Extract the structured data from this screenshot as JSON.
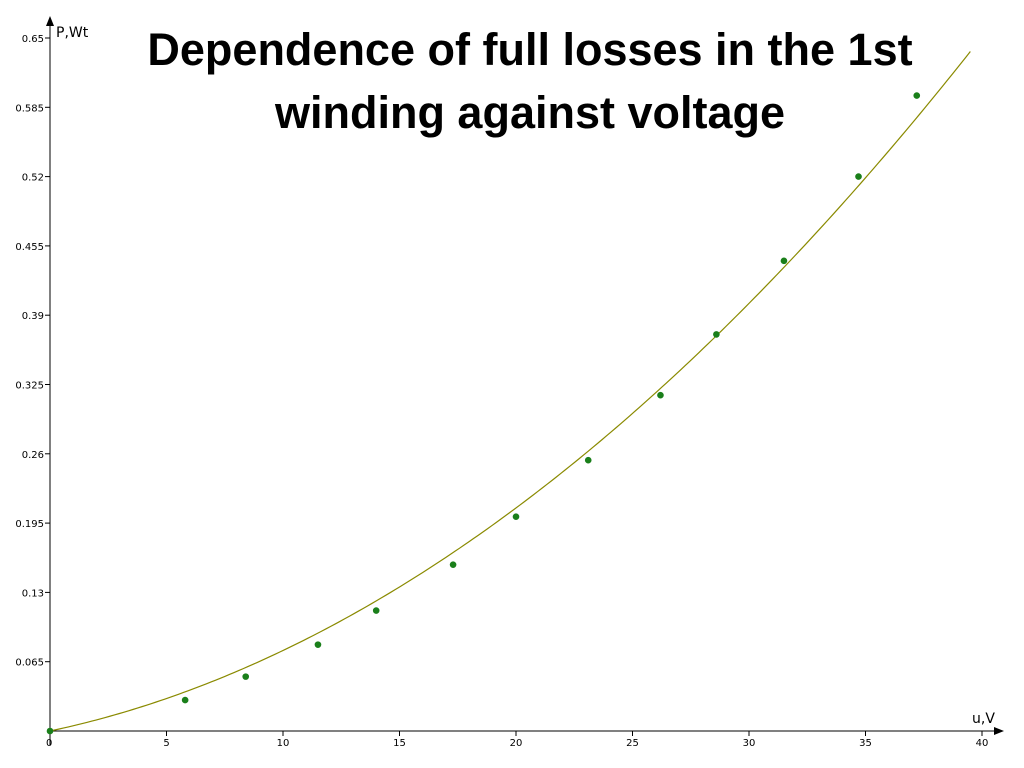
{
  "chart_data": {
    "type": "scatter",
    "title": "Dependence of full losses in the 1st winding against  voltage",
    "xlabel": "u,V",
    "ylabel": "P,Wt",
    "xlim": [
      0,
      40
    ],
    "ylim": [
      0,
      0.65
    ],
    "x_ticks": [
      "5",
      "10",
      "15",
      "20",
      "25",
      "30",
      "35",
      "40"
    ],
    "y_ticks": [
      "0.065",
      "0.13",
      "0.195",
      "0.26",
      "0.325",
      "0.39",
      "0.455",
      "0.52",
      "0.585",
      "0.65"
    ],
    "origin_label": "0",
    "grid": false,
    "legend": "none",
    "series": [
      {
        "type": "scatter",
        "marker_color": "#1a7f1a",
        "x": [
          0,
          5.8,
          8.4,
          11.5,
          14.0,
          17.3,
          20.0,
          23.1,
          26.2,
          28.6,
          31.5,
          34.7,
          37.2
        ],
        "y": [
          0,
          0.029,
          0.051,
          0.081,
          0.113,
          0.156,
          0.201,
          0.254,
          0.315,
          0.372,
          0.441,
          0.52,
          0.596
        ]
      },
      {
        "type": "line",
        "line_color": "#8a8a00",
        "fit_coefficients": [
          0.000291,
          0.00464
        ],
        "x_range": [
          0,
          39.5
        ]
      }
    ]
  }
}
